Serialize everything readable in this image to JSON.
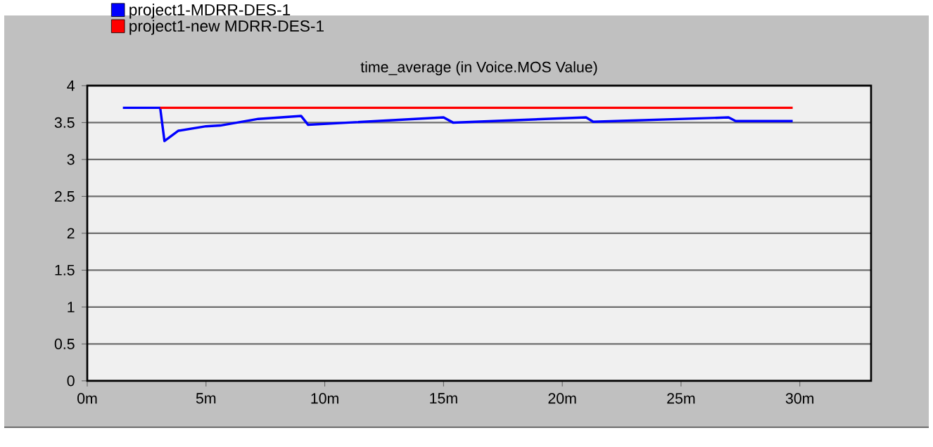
{
  "chart_data": {
    "type": "line",
    "title": "time_average (in Voice.MOS Value)",
    "series": [
      {
        "name": "project1-MDRR-DES-1",
        "color": "#0000ff",
        "x": [
          1.5,
          3.07,
          3.25,
          3.84,
          5.0,
          5.6,
          7.2,
          9.0,
          9.3,
          15.0,
          15.4,
          21.0,
          21.3,
          27.0,
          27.3,
          29.7
        ],
        "values": [
          3.7,
          3.7,
          3.25,
          3.39,
          3.45,
          3.46,
          3.55,
          3.59,
          3.47,
          3.57,
          3.5,
          3.57,
          3.51,
          3.57,
          3.52,
          3.52
        ]
      },
      {
        "name": "project1-new MDRR-DES-1",
        "color": "#ff0000",
        "x": [
          3.07,
          29.7
        ],
        "values": [
          3.7,
          3.7
        ]
      }
    ],
    "xlim": [
      0,
      33
    ],
    "xticks": [
      {
        "value": 0,
        "label": "0m"
      },
      {
        "value": 5,
        "label": "5m"
      },
      {
        "value": 10,
        "label": "10m"
      },
      {
        "value": 15,
        "label": "15m"
      },
      {
        "value": 20,
        "label": "20m"
      },
      {
        "value": 25,
        "label": "25m"
      },
      {
        "value": 30,
        "label": "30m"
      }
    ],
    "ylim": [
      0,
      4
    ],
    "yticks": [
      0,
      0.5,
      1,
      1.5,
      2,
      2.5,
      3,
      3.5,
      4
    ],
    "grid": "y",
    "legend": "top left",
    "marker": "none",
    "line_style": "solid"
  }
}
